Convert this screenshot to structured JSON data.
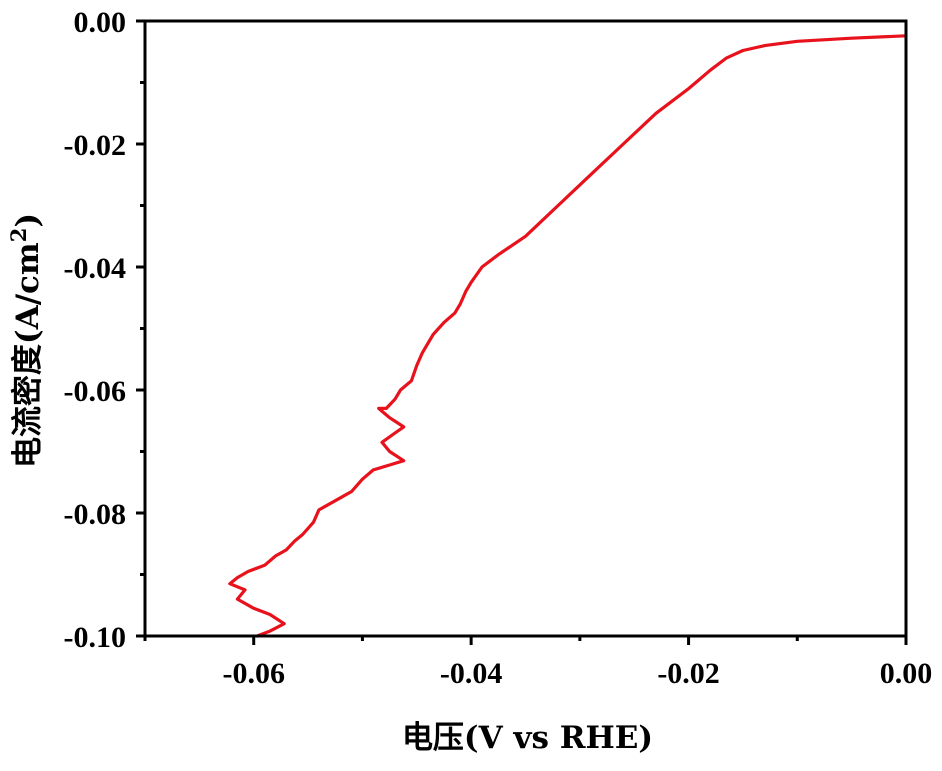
{
  "chart_data": {
    "type": "line",
    "title": "",
    "xlabel": "电压(V vs RHE)",
    "ylabel_main": "电流密度(A/cm",
    "ylabel_sup": "2",
    "ylabel_close": ")",
    "xlim": [
      -0.07,
      0.0
    ],
    "ylim": [
      -0.1,
      0.0
    ],
    "x_major_ticks": [
      -0.06,
      -0.04,
      -0.02,
      0.0
    ],
    "x_tick_labels": [
      "-0.06",
      "-0.04",
      "-0.02",
      "0.00"
    ],
    "x_minor_ticks": [
      -0.07,
      -0.05,
      -0.03,
      -0.01
    ],
    "y_major_ticks": [
      0.0,
      -0.02,
      -0.04,
      -0.06,
      -0.08,
      -0.1
    ],
    "y_tick_labels": [
      "0.00",
      "-0.02",
      "-0.04",
      "-0.06",
      "-0.08",
      "-0.10"
    ],
    "y_minor_ticks": [
      -0.01,
      -0.03,
      -0.05,
      -0.07,
      -0.09
    ],
    "grid": false,
    "legend": "none",
    "series": [
      {
        "color": "#e8121c",
        "points": [
          [
            0.0,
            -0.0024
          ],
          [
            -0.005,
            -0.0028
          ],
          [
            -0.01,
            -0.0033
          ],
          [
            -0.013,
            -0.004
          ],
          [
            -0.015,
            -0.0048
          ],
          [
            -0.0165,
            -0.006
          ],
          [
            -0.018,
            -0.008
          ],
          [
            -0.02,
            -0.011
          ],
          [
            -0.023,
            -0.015
          ],
          [
            -0.026,
            -0.02
          ],
          [
            -0.029,
            -0.025
          ],
          [
            -0.032,
            -0.03
          ],
          [
            -0.035,
            -0.035
          ],
          [
            -0.0375,
            -0.038
          ],
          [
            -0.039,
            -0.04
          ],
          [
            -0.04,
            -0.0425
          ],
          [
            -0.0405,
            -0.044
          ],
          [
            -0.041,
            -0.046
          ],
          [
            -0.0415,
            -0.0475
          ],
          [
            -0.0425,
            -0.049
          ],
          [
            -0.0435,
            -0.051
          ],
          [
            -0.0445,
            -0.054
          ],
          [
            -0.045,
            -0.056
          ],
          [
            -0.0455,
            -0.0585
          ],
          [
            -0.0465,
            -0.06
          ],
          [
            -0.047,
            -0.0615
          ],
          [
            -0.0478,
            -0.063
          ],
          [
            -0.0485,
            -0.063
          ],
          [
            -0.0475,
            -0.0645
          ],
          [
            -0.0462,
            -0.066
          ],
          [
            -0.047,
            -0.067
          ],
          [
            -0.0482,
            -0.0685
          ],
          [
            -0.0475,
            -0.07
          ],
          [
            -0.0462,
            -0.0715
          ],
          [
            -0.0475,
            -0.0722
          ],
          [
            -0.049,
            -0.073
          ],
          [
            -0.05,
            -0.0745
          ],
          [
            -0.051,
            -0.0765
          ],
          [
            -0.0525,
            -0.078
          ],
          [
            -0.054,
            -0.0795
          ],
          [
            -0.0545,
            -0.0815
          ],
          [
            -0.0555,
            -0.0835
          ],
          [
            -0.0562,
            -0.0845
          ],
          [
            -0.057,
            -0.086
          ],
          [
            -0.058,
            -0.087
          ],
          [
            -0.059,
            -0.0885
          ],
          [
            -0.0605,
            -0.0895
          ],
          [
            -0.0615,
            -0.0905
          ],
          [
            -0.0622,
            -0.0915
          ],
          [
            -0.0608,
            -0.0925
          ],
          [
            -0.0615,
            -0.094
          ],
          [
            -0.06,
            -0.0955
          ],
          [
            -0.0585,
            -0.0965
          ],
          [
            -0.0572,
            -0.098
          ],
          [
            -0.0585,
            -0.0992
          ],
          [
            -0.0597,
            -0.1
          ]
        ]
      }
    ]
  }
}
